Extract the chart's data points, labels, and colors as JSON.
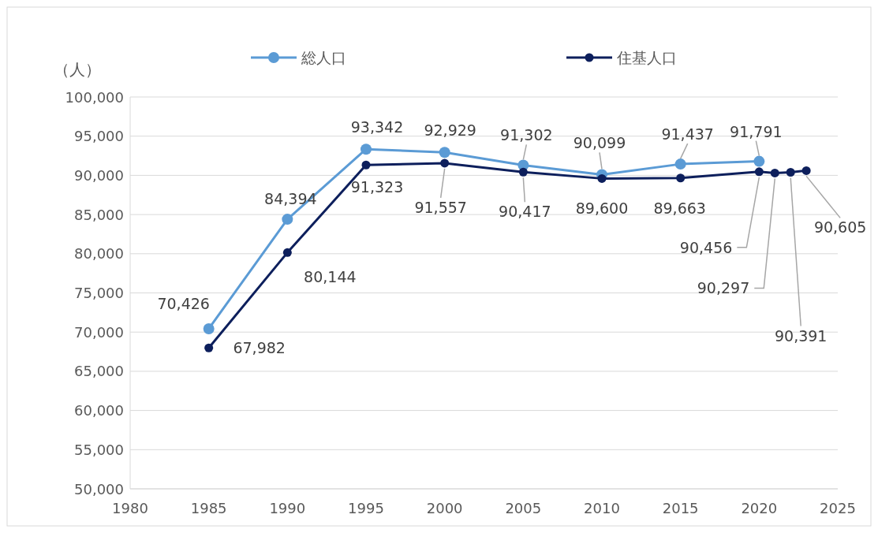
{
  "chart_data": {
    "type": "line",
    "ylabel": "（人）",
    "x": [
      1985,
      1990,
      1995,
      2000,
      2005,
      2010,
      2015,
      2020
    ],
    "series": [
      {
        "name": "総人口",
        "color": "#5b9bd5",
        "values": [
          70426,
          84394,
          93342,
          92929,
          91302,
          90099,
          91437,
          91791
        ],
        "value_labels": [
          "70,426",
          "84,394",
          "93,342",
          "92,929",
          "91,302",
          "90,099",
          "91,437",
          "91,791"
        ]
      },
      {
        "name": "住基人口",
        "color": "#0d1f5c",
        "x": [
          1985,
          1990,
          1995,
          2000,
          2005,
          2010,
          2015,
          2020,
          2021,
          2022,
          2023
        ],
        "values": [
          67982,
          80144,
          91323,
          91557,
          90417,
          89600,
          89663,
          90456,
          90297,
          90391,
          90605
        ],
        "value_labels": [
          "67,982",
          "80,144",
          "91,323",
          "91,557",
          "90,417",
          "89,600",
          "89,663",
          "90,456",
          "90,297",
          "90,391",
          "90,605"
        ]
      }
    ],
    "xlim": [
      1980,
      2025
    ],
    "xticks": [
      1980,
      1985,
      1990,
      1995,
      2000,
      2005,
      2010,
      2015,
      2020,
      2025
    ],
    "ylim": [
      50000,
      100000
    ],
    "yticks": [
      {
        "value": 50000,
        "label": "50,000"
      },
      {
        "value": 55000,
        "label": "55,000"
      },
      {
        "value": 60000,
        "label": "60,000"
      },
      {
        "value": 65000,
        "label": "65,000"
      },
      {
        "value": 70000,
        "label": "70,000"
      },
      {
        "value": 75000,
        "label": "75,000"
      },
      {
        "value": 80000,
        "label": "80,000"
      },
      {
        "value": 85000,
        "label": "85,000"
      },
      {
        "value": 90000,
        "label": "90,000"
      },
      {
        "value": 95000,
        "label": "95,000"
      },
      {
        "value": 100000,
        "label": "100,000"
      }
    ],
    "grid": "y",
    "legend": "top",
    "marker": "circle",
    "line_style": "solid"
  }
}
